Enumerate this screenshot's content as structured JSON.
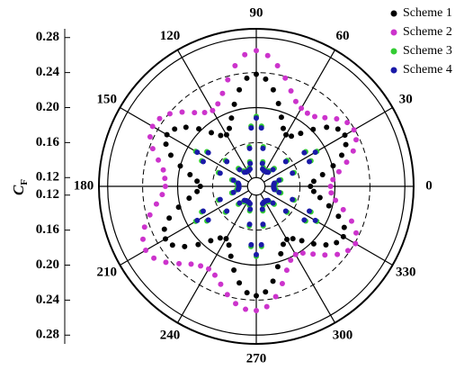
{
  "chart_data": {
    "type": "polar-scatter",
    "y_label": "C",
    "y_label_sub": "F",
    "x": [
      0,
      5,
      10,
      15,
      20,
      25,
      30,
      35,
      40,
      45,
      50,
      55,
      60,
      65,
      70,
      75,
      80,
      85,
      90,
      95,
      100,
      105,
      110,
      115,
      120,
      125,
      130,
      135,
      140,
      145,
      150,
      155,
      160,
      165,
      170,
      175,
      180,
      185,
      190,
      195,
      200,
      205,
      210,
      215,
      220,
      225,
      230,
      235,
      240,
      245,
      250,
      255,
      260,
      265,
      270,
      275,
      280,
      285,
      290,
      295,
      300,
      305,
      310,
      315,
      320,
      325,
      330,
      335,
      340,
      345,
      350,
      355
    ],
    "thetaticks": [
      0,
      30,
      60,
      90,
      120,
      150,
      180,
      210,
      240,
      270,
      300,
      330
    ],
    "rlim": [
      0.11,
      0.29
    ],
    "rticks": [
      0.12,
      0.16,
      {
        "value": 0.2,
        "label": "0.20"
      },
      0.24,
      0.28
    ],
    "series": [
      {
        "name": "Scheme 1",
        "color": "#000000",
        "values": [
          0.172,
          0.176,
          0.187,
          0.201,
          0.214,
          0.223,
          0.227,
          0.224,
          0.215,
          0.202,
          0.189,
          0.18,
          0.178,
          0.183,
          0.194,
          0.208,
          0.222,
          0.233,
          0.238,
          0.234,
          0.222,
          0.207,
          0.193,
          0.183,
          0.178,
          0.181,
          0.19,
          0.203,
          0.215,
          0.224,
          0.228,
          0.224,
          0.214,
          0.2,
          0.187,
          0.178,
          0.174,
          0.178,
          0.188,
          0.202,
          0.216,
          0.226,
          0.23,
          0.227,
          0.217,
          0.204,
          0.191,
          0.182,
          0.179,
          0.184,
          0.195,
          0.209,
          0.222,
          0.232,
          0.235,
          0.231,
          0.22,
          0.205,
          0.192,
          0.183,
          0.18,
          0.183,
          0.191,
          0.203,
          0.214,
          0.222,
          0.225,
          0.221,
          0.21,
          0.196,
          0.184,
          0.176
        ]
      },
      {
        "name": "Scheme 2",
        "color": "#cc33cc",
        "values": [
          0.195,
          0.198,
          0.206,
          0.217,
          0.228,
          0.236,
          0.239,
          0.237,
          0.23,
          0.221,
          0.214,
          0.212,
          0.213,
          0.217,
          0.226,
          0.238,
          0.25,
          0.26,
          0.265,
          0.261,
          0.25,
          0.236,
          0.223,
          0.214,
          0.21,
          0.213,
          0.22,
          0.23,
          0.239,
          0.245,
          0.247,
          0.244,
          0.236,
          0.226,
          0.218,
          0.215,
          0.214,
          0.218,
          0.226,
          0.236,
          0.246,
          0.253,
          0.256,
          0.253,
          0.245,
          0.235,
          0.226,
          0.221,
          0.219,
          0.222,
          0.229,
          0.238,
          0.246,
          0.251,
          0.252,
          0.248,
          0.238,
          0.225,
          0.212,
          0.203,
          0.2,
          0.203,
          0.211,
          0.221,
          0.231,
          0.238,
          0.241,
          0.236,
          0.226,
          0.213,
          0.202,
          0.196
        ]
      },
      {
        "name": "Scheme 3",
        "color": "#33cc33",
        "values": [
          0.131,
          0.131,
          0.133,
          0.139,
          0.156,
          0.179,
          0.19,
          0.179,
          0.156,
          0.139,
          0.133,
          0.131,
          0.131,
          0.131,
          0.133,
          0.139,
          0.156,
          0.179,
          0.19,
          0.179,
          0.156,
          0.139,
          0.133,
          0.131,
          0.131,
          0.131,
          0.133,
          0.139,
          0.156,
          0.179,
          0.19,
          0.179,
          0.156,
          0.139,
          0.133,
          0.131,
          0.131,
          0.131,
          0.133,
          0.139,
          0.156,
          0.179,
          0.19,
          0.179,
          0.156,
          0.139,
          0.133,
          0.131,
          0.131,
          0.131,
          0.133,
          0.139,
          0.156,
          0.179,
          0.19,
          0.179,
          0.156,
          0.139,
          0.133,
          0.131,
          0.131,
          0.131,
          0.133,
          0.139,
          0.156,
          0.179,
          0.19,
          0.179,
          0.156,
          0.139,
          0.133,
          0.131
        ]
      },
      {
        "name": "Scheme 4",
        "color": "#1a1aa8",
        "values": [
          0.13,
          0.13,
          0.131,
          0.137,
          0.154,
          0.177,
          0.188,
          0.177,
          0.154,
          0.137,
          0.131,
          0.13,
          0.13,
          0.13,
          0.131,
          0.137,
          0.154,
          0.177,
          0.188,
          0.177,
          0.154,
          0.137,
          0.131,
          0.13,
          0.13,
          0.13,
          0.131,
          0.137,
          0.154,
          0.177,
          0.188,
          0.177,
          0.154,
          0.137,
          0.131,
          0.13,
          0.13,
          0.13,
          0.131,
          0.137,
          0.154,
          0.177,
          0.188,
          0.177,
          0.154,
          0.137,
          0.131,
          0.13,
          0.13,
          0.13,
          0.131,
          0.137,
          0.154,
          0.177,
          0.188,
          0.177,
          0.154,
          0.137,
          0.131,
          0.13,
          0.13,
          0.13,
          0.131,
          0.137,
          0.154,
          0.177,
          0.188,
          0.177,
          0.154,
          0.137,
          0.131,
          0.13
        ]
      }
    ]
  }
}
